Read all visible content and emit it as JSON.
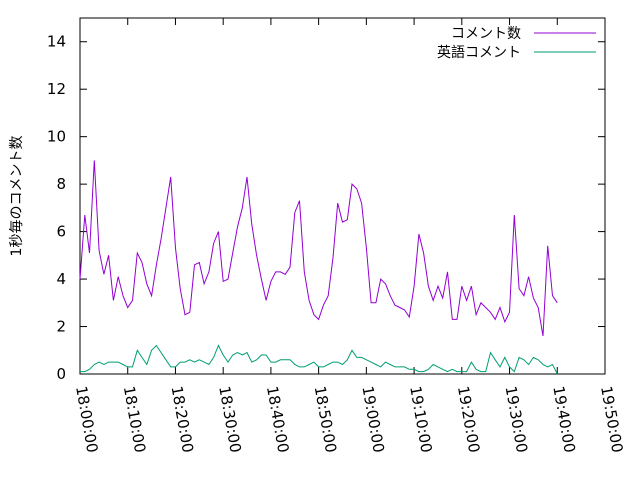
{
  "chart_data": {
    "type": "line",
    "title": "",
    "xlabel": "",
    "ylabel": "1秒毎のコメント数",
    "xlim": [
      "18:00:00",
      "19:50:00"
    ],
    "ylim": [
      0,
      15
    ],
    "yticks": [
      "0",
      "2",
      "4",
      "6",
      "8",
      "10",
      "12",
      "14"
    ],
    "x_tick_labels": [
      "18:00:00",
      "18:10:00",
      "18:20:00",
      "18:30:00",
      "18:40:00",
      "18:50:00",
      "19:00:00",
      "19:10:00",
      "19:20:00",
      "19:30:00",
      "19:40:00",
      "19:50:00"
    ],
    "grid": false,
    "legend_position": "top-right",
    "x_times": [
      "18:00:00",
      "18:01:00",
      "18:02:00",
      "18:03:00",
      "18:04:00",
      "18:05:00",
      "18:06:00",
      "18:07:00",
      "18:08:00",
      "18:09:00",
      "18:10:00",
      "18:11:00",
      "18:12:00",
      "18:13:00",
      "18:14:00",
      "18:15:00",
      "18:16:00",
      "18:17:00",
      "18:18:00",
      "18:19:00",
      "18:20:00",
      "18:21:00",
      "18:22:00",
      "18:23:00",
      "18:24:00",
      "18:25:00",
      "18:26:00",
      "18:27:00",
      "18:28:00",
      "18:29:00",
      "18:30:00",
      "18:31:00",
      "18:32:00",
      "18:33:00",
      "18:34:00",
      "18:35:00",
      "18:36:00",
      "18:37:00",
      "18:38:00",
      "18:39:00",
      "18:40:00",
      "18:41:00",
      "18:42:00",
      "18:43:00",
      "18:44:00",
      "18:45:00",
      "18:46:00",
      "18:47:00",
      "18:48:00",
      "18:49:00",
      "18:50:00",
      "18:51:00",
      "18:52:00",
      "18:53:00",
      "18:54:00",
      "18:55:00",
      "18:56:00",
      "18:57:00",
      "18:58:00",
      "18:59:00",
      "19:00:00",
      "19:01:00",
      "19:02:00",
      "19:03:00",
      "19:04:00",
      "19:05:00",
      "19:06:00",
      "19:07:00",
      "19:08:00",
      "19:09:00",
      "19:10:00",
      "19:11:00",
      "19:12:00",
      "19:13:00",
      "19:14:00",
      "19:15:00",
      "19:16:00",
      "19:17:00",
      "19:18:00",
      "19:19:00",
      "19:20:00",
      "19:21:00",
      "19:22:00",
      "19:23:00",
      "19:24:00",
      "19:25:00",
      "19:26:00",
      "19:27:00",
      "19:28:00",
      "19:29:00",
      "19:30:00",
      "19:31:00",
      "19:32:00",
      "19:33:00",
      "19:34:00",
      "19:35:00",
      "19:36:00",
      "19:37:00",
      "19:38:00",
      "19:39:00",
      "19:40:00"
    ],
    "series": [
      {
        "name": "コメント数",
        "color": "#9400d3",
        "values": [
          4.0,
          6.7,
          5.1,
          9.0,
          5.2,
          4.2,
          5.0,
          3.1,
          4.1,
          3.3,
          2.8,
          3.1,
          5.1,
          4.7,
          3.8,
          3.3,
          4.6,
          5.7,
          7.0,
          8.3,
          5.3,
          3.6,
          2.5,
          2.6,
          4.6,
          4.7,
          3.8,
          4.3,
          5.5,
          6.0,
          3.9,
          4.0,
          5.1,
          6.2,
          7.0,
          8.3,
          6.3,
          5.0,
          4.0,
          3.1,
          3.9,
          4.3,
          4.3,
          4.2,
          4.5,
          6.8,
          7.3,
          4.3,
          3.1,
          2.5,
          2.3,
          2.9,
          3.3,
          4.9,
          7.2,
          6.4,
          6.5,
          8.0,
          7.8,
          7.2,
          5.3,
          3.0,
          3.0,
          4.0,
          3.8,
          3.3,
          2.9,
          2.8,
          2.7,
          2.4,
          3.7,
          5.9,
          5.1,
          3.7,
          3.1,
          3.7,
          3.2,
          4.3,
          2.3,
          2.3,
          3.7,
          3.1,
          3.7,
          2.5,
          3.0,
          2.8,
          2.6,
          2.3,
          2.8,
          2.2,
          2.6,
          6.7,
          3.6,
          3.3,
          4.1,
          3.2,
          2.8,
          1.6,
          5.4,
          3.3,
          3.0
        ]
      },
      {
        "name": "英語コメント",
        "color": "#009e73",
        "values": [
          0.1,
          0.1,
          0.2,
          0.4,
          0.5,
          0.4,
          0.5,
          0.5,
          0.5,
          0.4,
          0.3,
          0.3,
          1.0,
          0.7,
          0.4,
          1.0,
          1.2,
          0.9,
          0.6,
          0.3,
          0.3,
          0.5,
          0.5,
          0.6,
          0.5,
          0.6,
          0.5,
          0.4,
          0.7,
          1.2,
          0.8,
          0.5,
          0.8,
          0.9,
          0.8,
          0.9,
          0.5,
          0.6,
          0.8,
          0.8,
          0.5,
          0.5,
          0.6,
          0.6,
          0.6,
          0.4,
          0.3,
          0.3,
          0.4,
          0.5,
          0.3,
          0.3,
          0.4,
          0.5,
          0.5,
          0.4,
          0.6,
          1.0,
          0.7,
          0.7,
          0.6,
          0.5,
          0.4,
          0.3,
          0.5,
          0.4,
          0.3,
          0.3,
          0.3,
          0.2,
          0.2,
          0.1,
          0.1,
          0.2,
          0.4,
          0.3,
          0.2,
          0.1,
          0.2,
          0.1,
          0.1,
          0.1,
          0.5,
          0.2,
          0.1,
          0.1,
          0.9,
          0.6,
          0.3,
          0.7,
          0.3,
          0.1,
          0.7,
          0.6,
          0.4,
          0.7,
          0.6,
          0.4,
          0.3,
          0.4,
          0.0
        ]
      }
    ]
  }
}
